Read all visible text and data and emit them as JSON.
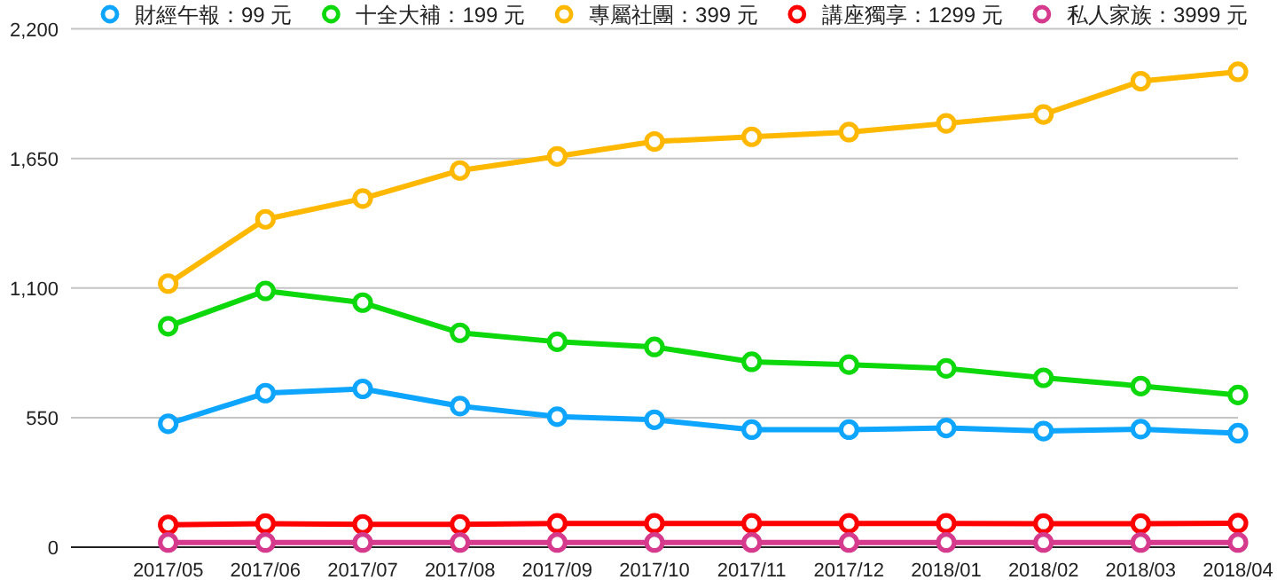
{
  "chart_data": {
    "type": "line",
    "categories": [
      "2017/05",
      "2017/06",
      "2017/07",
      "2017/08",
      "2017/09",
      "2017/10",
      "2017/11",
      "2017/12",
      "2018/01",
      "2018/02",
      "2018/03",
      "2018/04"
    ],
    "series": [
      {
        "name": "財經午報：99 元",
        "color": "#0ea5ff",
        "values": [
          524,
          654,
          672,
          599,
          554,
          541,
          499,
          499,
          506,
          493,
          501,
          484
        ]
      },
      {
        "name": "十全大補：199 元",
        "color": "#0cd80c",
        "values": [
          938,
          1088,
          1038,
          910,
          872,
          850,
          787,
          775,
          759,
          719,
          684,
          646
        ]
      },
      {
        "name": "專屬社團：399 元",
        "color": "#ffb800",
        "values": [
          1119,
          1392,
          1480,
          1599,
          1659,
          1722,
          1742,
          1762,
          1799,
          1837,
          1978,
          2018
        ]
      },
      {
        "name": "講座獨享：1299 元",
        "color": "#ff0000",
        "values": [
          95,
          100,
          97,
          97,
          101,
          101,
          101,
          101,
          101,
          100,
          100,
          102
        ]
      },
      {
        "name": "私人家族：3999 元",
        "color": "#d63a8c",
        "values": [
          20,
          20,
          20,
          20,
          20,
          20,
          20,
          20,
          20,
          20,
          20,
          20
        ]
      }
    ],
    "ylim": [
      0,
      2200
    ],
    "yticks": [
      {
        "value": 0,
        "label": "0"
      },
      {
        "value": 550,
        "label": "550"
      },
      {
        "value": 1100,
        "label": "1,100"
      },
      {
        "value": 1650,
        "label": "1,650"
      },
      {
        "value": 2200,
        "label": "2,200"
      }
    ],
    "grid": "y",
    "legend": "top",
    "marker": "circle",
    "line_style": "solid"
  }
}
